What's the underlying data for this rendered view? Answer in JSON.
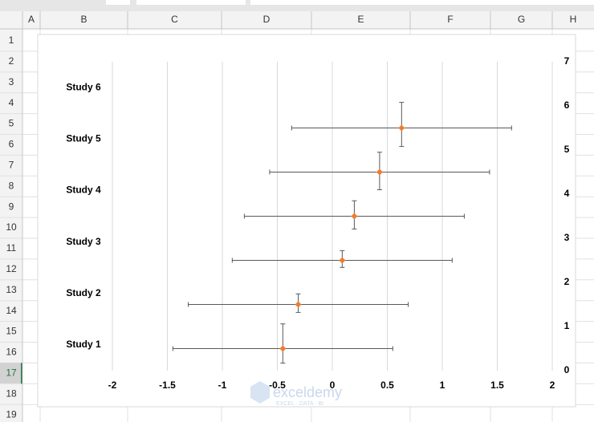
{
  "spreadsheet": {
    "columns": [
      "A",
      "B",
      "C",
      "D",
      "E",
      "F",
      "G",
      "H"
    ],
    "rows": [
      1,
      2,
      3,
      4,
      5,
      6,
      7,
      8,
      9,
      10,
      11,
      12,
      13,
      14,
      15,
      16,
      17,
      18,
      19
    ],
    "active_row": 17
  },
  "watermark": {
    "title": "exceldemy",
    "subtitle": "EXCEL · DATA · BI"
  },
  "chart_data": {
    "type": "scatter",
    "categories": [
      "Study 1",
      "Study 2",
      "Study 3",
      "Study 4",
      "Study 5",
      "Study 6"
    ],
    "x": [
      -0.45,
      -0.31,
      0.09,
      0.2,
      0.43,
      0.63
    ],
    "y": [
      0.5,
      1.5,
      2.5,
      3.5,
      4.5,
      5.5
    ],
    "x_error": [
      1,
      1,
      1,
      1,
      1,
      1
    ],
    "y_error_minus": [
      0.33,
      0.18,
      0.16,
      0.29,
      0.4,
      0.42
    ],
    "y_error_plus": [
      0.56,
      0.24,
      0.22,
      0.35,
      0.45,
      0.58
    ],
    "color": "#ed7d31",
    "error_color": "#595959",
    "xlim": [
      -2,
      2
    ],
    "xticks": [
      -2,
      -1.5,
      -1,
      -0.5,
      0,
      0.5,
      1,
      1.5,
      2
    ],
    "ylim": [
      0,
      7
    ],
    "yticks": [
      0,
      1,
      2,
      3,
      4,
      5,
      6,
      7
    ],
    "y_axis_side": "right",
    "grid": true
  }
}
